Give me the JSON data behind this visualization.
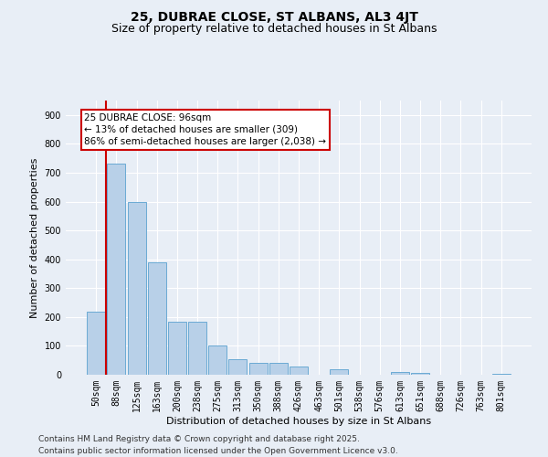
{
  "title": "25, DUBRAE CLOSE, ST ALBANS, AL3 4JT",
  "subtitle": "Size of property relative to detached houses in St Albans",
  "xlabel": "Distribution of detached houses by size in St Albans",
  "ylabel": "Number of detached properties",
  "categories": [
    "50sqm",
    "88sqm",
    "125sqm",
    "163sqm",
    "200sqm",
    "238sqm",
    "275sqm",
    "313sqm",
    "350sqm",
    "388sqm",
    "426sqm",
    "463sqm",
    "501sqm",
    "538sqm",
    "576sqm",
    "613sqm",
    "651sqm",
    "688sqm",
    "726sqm",
    "763sqm",
    "801sqm"
  ],
  "values": [
    220,
    730,
    600,
    390,
    185,
    185,
    100,
    55,
    42,
    42,
    30,
    0,
    18,
    0,
    0,
    8,
    5,
    0,
    0,
    0,
    2
  ],
  "bar_color": "#b8d0e8",
  "bar_edge_color": "#6aaad4",
  "vline_color": "#cc0000",
  "vline_x": 0.525,
  "annotation_text": "25 DUBRAE CLOSE: 96sqm\n← 13% of detached houses are smaller (309)\n86% of semi-detached houses are larger (2,038) →",
  "annotation_box_color": "white",
  "annotation_box_edge_color": "#cc0000",
  "ylim": [
    0,
    950
  ],
  "yticks": [
    0,
    100,
    200,
    300,
    400,
    500,
    600,
    700,
    800,
    900
  ],
  "bg_color": "#e8eef6",
  "grid_color": "white",
  "footer_line1": "Contains HM Land Registry data © Crown copyright and database right 2025.",
  "footer_line2": "Contains public sector information licensed under the Open Government Licence v3.0.",
  "title_fontsize": 10,
  "subtitle_fontsize": 9,
  "axis_label_fontsize": 8,
  "tick_fontsize": 7,
  "annotation_fontsize": 7.5,
  "footer_fontsize": 6.5
}
